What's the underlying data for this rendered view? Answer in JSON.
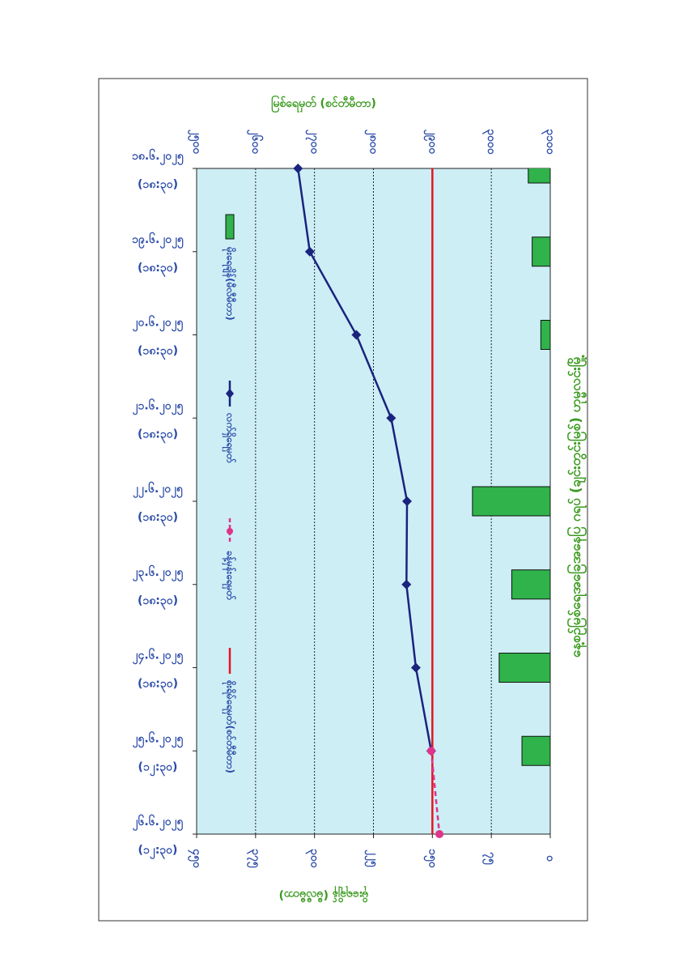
{
  "chart_data": {
    "type": "line",
    "title": "နေ့စဉ်မြစ်ရေအခြေအနေပြ ဂရပ် (ချင်းတွင်းမြစ်) ဟုမ္မလင်းမြို့",
    "y_label": "မြစ်ရေမှတ် (စင်တီမီတာ)",
    "y2_label": "မိုးရေချိန် (မီလီမီတာ)",
    "categories": [
      "၁၈.၆.၂၀၂၅",
      "၁၉.၆.၂၀၂၅",
      "၂၀.၆.၂၀၂၅",
      "၂၁.၆.၂၀၂၅",
      "၂၂.၆.၂၀၂၅",
      "၂၃.၆.၂၀၂၅",
      "၂၄.၆.၂၀၂၅",
      "၂၅.၆.၂၀၂၅",
      "၂၆.၆.၂၀၂၅"
    ],
    "category_times": [
      "(၁၈:၃၀)",
      "(၁၈:၃၀)",
      "(၁၈:၃၀)",
      "(၁၈:၃၀)",
      "(၁၈:၃၀)",
      "(၁၈:၃၀)",
      "(၁၈:၃၀)",
      "(၁၂:၃၀)",
      "(၁၂:၃၀)"
    ],
    "ylim": [
      2500,
      3100
    ],
    "yticks": [
      {
        "value": 2500,
        "label": "၂၅၀၀"
      },
      {
        "value": 2600,
        "label": "၂၆၀၀"
      },
      {
        "value": 2700,
        "label": "၂၇၀၀"
      },
      {
        "value": 2800,
        "label": "၂၈၀၀"
      },
      {
        "value": 2900,
        "label": "၂၉၀၀"
      },
      {
        "value": 3000,
        "label": "၃၀၀၀"
      },
      {
        "value": 3100,
        "label": "၃၁၀၀"
      }
    ],
    "y2lim": [
      0,
      450
    ],
    "y2ticks": [
      {
        "value": 0,
        "label": "၀"
      },
      {
        "value": 75,
        "label": "၇၅"
      },
      {
        "value": 150,
        "label": "၁၅၀"
      },
      {
        "value": 225,
        "label": "၂၂၅"
      },
      {
        "value": 300,
        "label": "၃၀၀"
      },
      {
        "value": 375,
        "label": "၃၇၅"
      },
      {
        "value": 450,
        "label": "၄၅၀"
      }
    ],
    "grid": true,
    "series": [
      {
        "name": "မိုးရေချိန်(မီလီမီတာ)",
        "kind": "bar",
        "axis": "y2",
        "color": "#2fb34a",
        "values": [
          28,
          23,
          12,
          0,
          99,
          49,
          65,
          36,
          null
        ]
      },
      {
        "name": "လက်ရှိရေမှတ်",
        "kind": "line",
        "color": "#1a237e",
        "marker": "diamond",
        "values": [
          2672,
          2692,
          2771,
          2830,
          2857,
          2856,
          2872,
          2898,
          null
        ]
      },
      {
        "name": "ခန့်မှန်းရေမှတ်",
        "kind": "line",
        "color": "#e0338a",
        "marker": "circle",
        "dashed": true,
        "values": [
          null,
          null,
          null,
          null,
          null,
          null,
          null,
          2898,
          2912
        ]
      }
    ],
    "danger_level": {
      "name": "စိုးရိမ်ရေမှတ်(စင်တီမီတာ)",
      "value": 2900,
      "color": "#e8141e"
    }
  }
}
